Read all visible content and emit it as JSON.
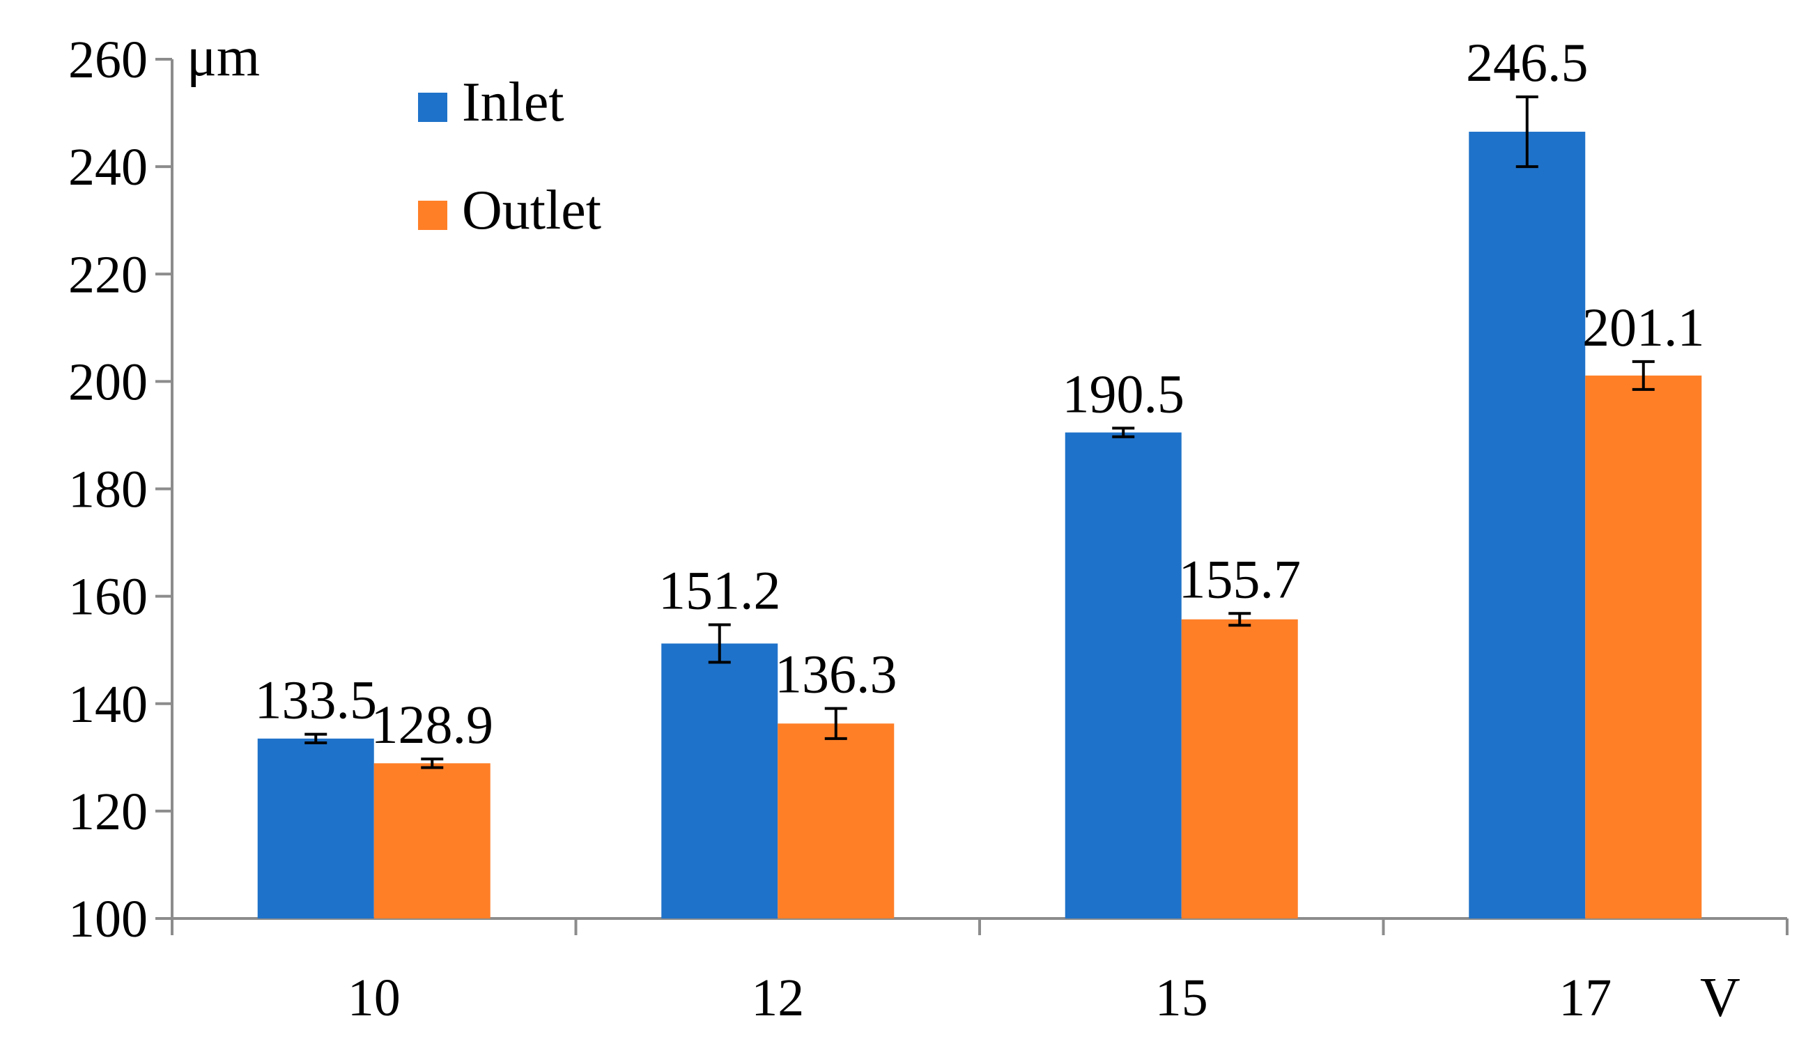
{
  "chart_data": {
    "type": "bar",
    "categories": [
      "10",
      "12",
      "15",
      "17"
    ],
    "series": [
      {
        "name": "Inlet",
        "color": "#1f72c9",
        "values": [
          133.5,
          151.2,
          190.5,
          246.5
        ],
        "errors": [
          0.8,
          3.5,
          0.8,
          6.5
        ]
      },
      {
        "name": "Outlet",
        "color": "#ff7f27",
        "values": [
          128.9,
          136.3,
          155.7,
          201.1
        ],
        "errors": [
          0.8,
          2.8,
          1.1,
          2.6
        ]
      }
    ],
    "y_unit": "μm",
    "x_unit": "V",
    "ylim": [
      100,
      260
    ],
    "y_ticks": [
      100,
      120,
      140,
      160,
      180,
      200,
      220,
      240,
      260
    ],
    "data_labels": {
      "Inlet": [
        "133.5",
        "151.2",
        "190.5",
        "246.5"
      ],
      "Outlet": [
        "128.9",
        "136.3",
        "155.7",
        "201.1"
      ]
    },
    "grid": false,
    "legend_position": "top-left"
  }
}
